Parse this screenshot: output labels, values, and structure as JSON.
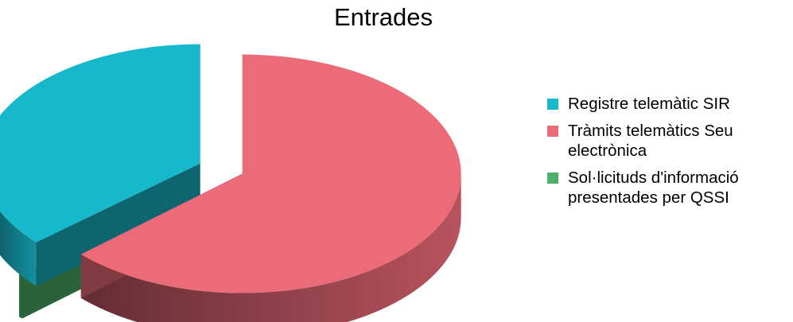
{
  "chart_data": {
    "type": "pie",
    "title": "Entrades",
    "categories": [
      "Registre telemàtic SIR",
      "Tràmits telemàtics Seu electrònica",
      "Sol·licituds d'informació presentades per QSSI"
    ],
    "values": [
      36.5,
      63.2,
      0.3
    ],
    "colors": [
      "#18b8cc",
      "#ec6b79",
      "#4cb26a"
    ],
    "style": "3d-exploded",
    "legend_position": "right"
  }
}
